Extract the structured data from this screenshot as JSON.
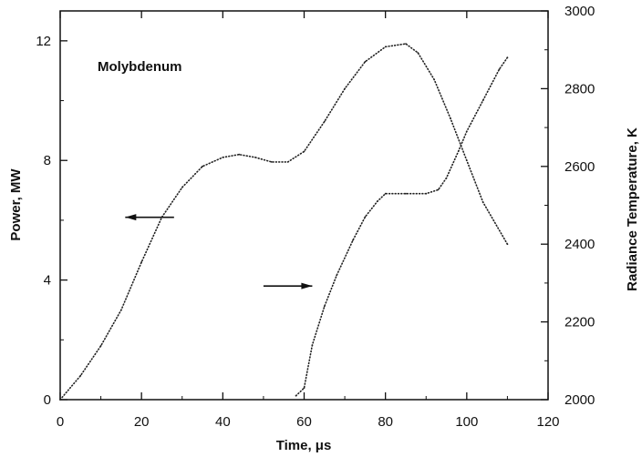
{
  "chart_data": {
    "type": "scatter",
    "title": "",
    "xlabel": "Time, μs",
    "ylabel_left": "Power, MW",
    "ylabel_right": "Radiance Temperature, K",
    "xlim": [
      0,
      120
    ],
    "ylim_left": [
      0,
      13
    ],
    "ylim_right": [
      2000,
      3000
    ],
    "xticks": [
      "0",
      "20",
      "40",
      "60",
      "80",
      "100",
      "120"
    ],
    "xtick_values": [
      0,
      20,
      40,
      60,
      80,
      100,
      120
    ],
    "yticks_left": [
      "0",
      "4",
      "8",
      "12"
    ],
    "ytick_values_left": [
      0,
      4,
      8,
      12
    ],
    "yticks_right": [
      "2000",
      "2200",
      "2400",
      "2600",
      "2800",
      "3000"
    ],
    "ytick_values_right": [
      2000,
      2200,
      2400,
      2600,
      2800,
      3000
    ],
    "grid": false,
    "annotation": "Molybdenum",
    "series": [
      {
        "axis": "left",
        "x": [
          0,
          5,
          10,
          15,
          20,
          25,
          30,
          35,
          40,
          44,
          48,
          52,
          56,
          60,
          65,
          70,
          75,
          80,
          85,
          88,
          92,
          96,
          100,
          104,
          110
        ],
        "y": [
          0,
          0.8,
          1.8,
          3.0,
          4.6,
          6.1,
          7.1,
          7.8,
          8.1,
          8.2,
          8.1,
          7.95,
          7.95,
          8.3,
          9.3,
          10.4,
          11.3,
          11.8,
          11.9,
          11.6,
          10.7,
          9.4,
          8.0,
          6.6,
          5.2
        ]
      },
      {
        "axis": "right",
        "x": [
          58,
          60,
          62,
          65,
          68,
          72,
          75,
          78,
          80,
          85,
          90,
          93,
          95,
          98,
          100,
          104,
          108,
          110
        ],
        "y": [
          2010,
          2030,
          2140,
          2240,
          2320,
          2410,
          2470,
          2510,
          2530,
          2530,
          2530,
          2540,
          2570,
          2640,
          2690,
          2770,
          2850,
          2880
        ]
      }
    ],
    "arrows": [
      {
        "points_to": "left",
        "x_start": 28,
        "x_end": 16,
        "y_left": 6.1
      },
      {
        "points_to": "right",
        "x_start": 50,
        "x_end": 62,
        "y_left": 3.8
      }
    ]
  }
}
